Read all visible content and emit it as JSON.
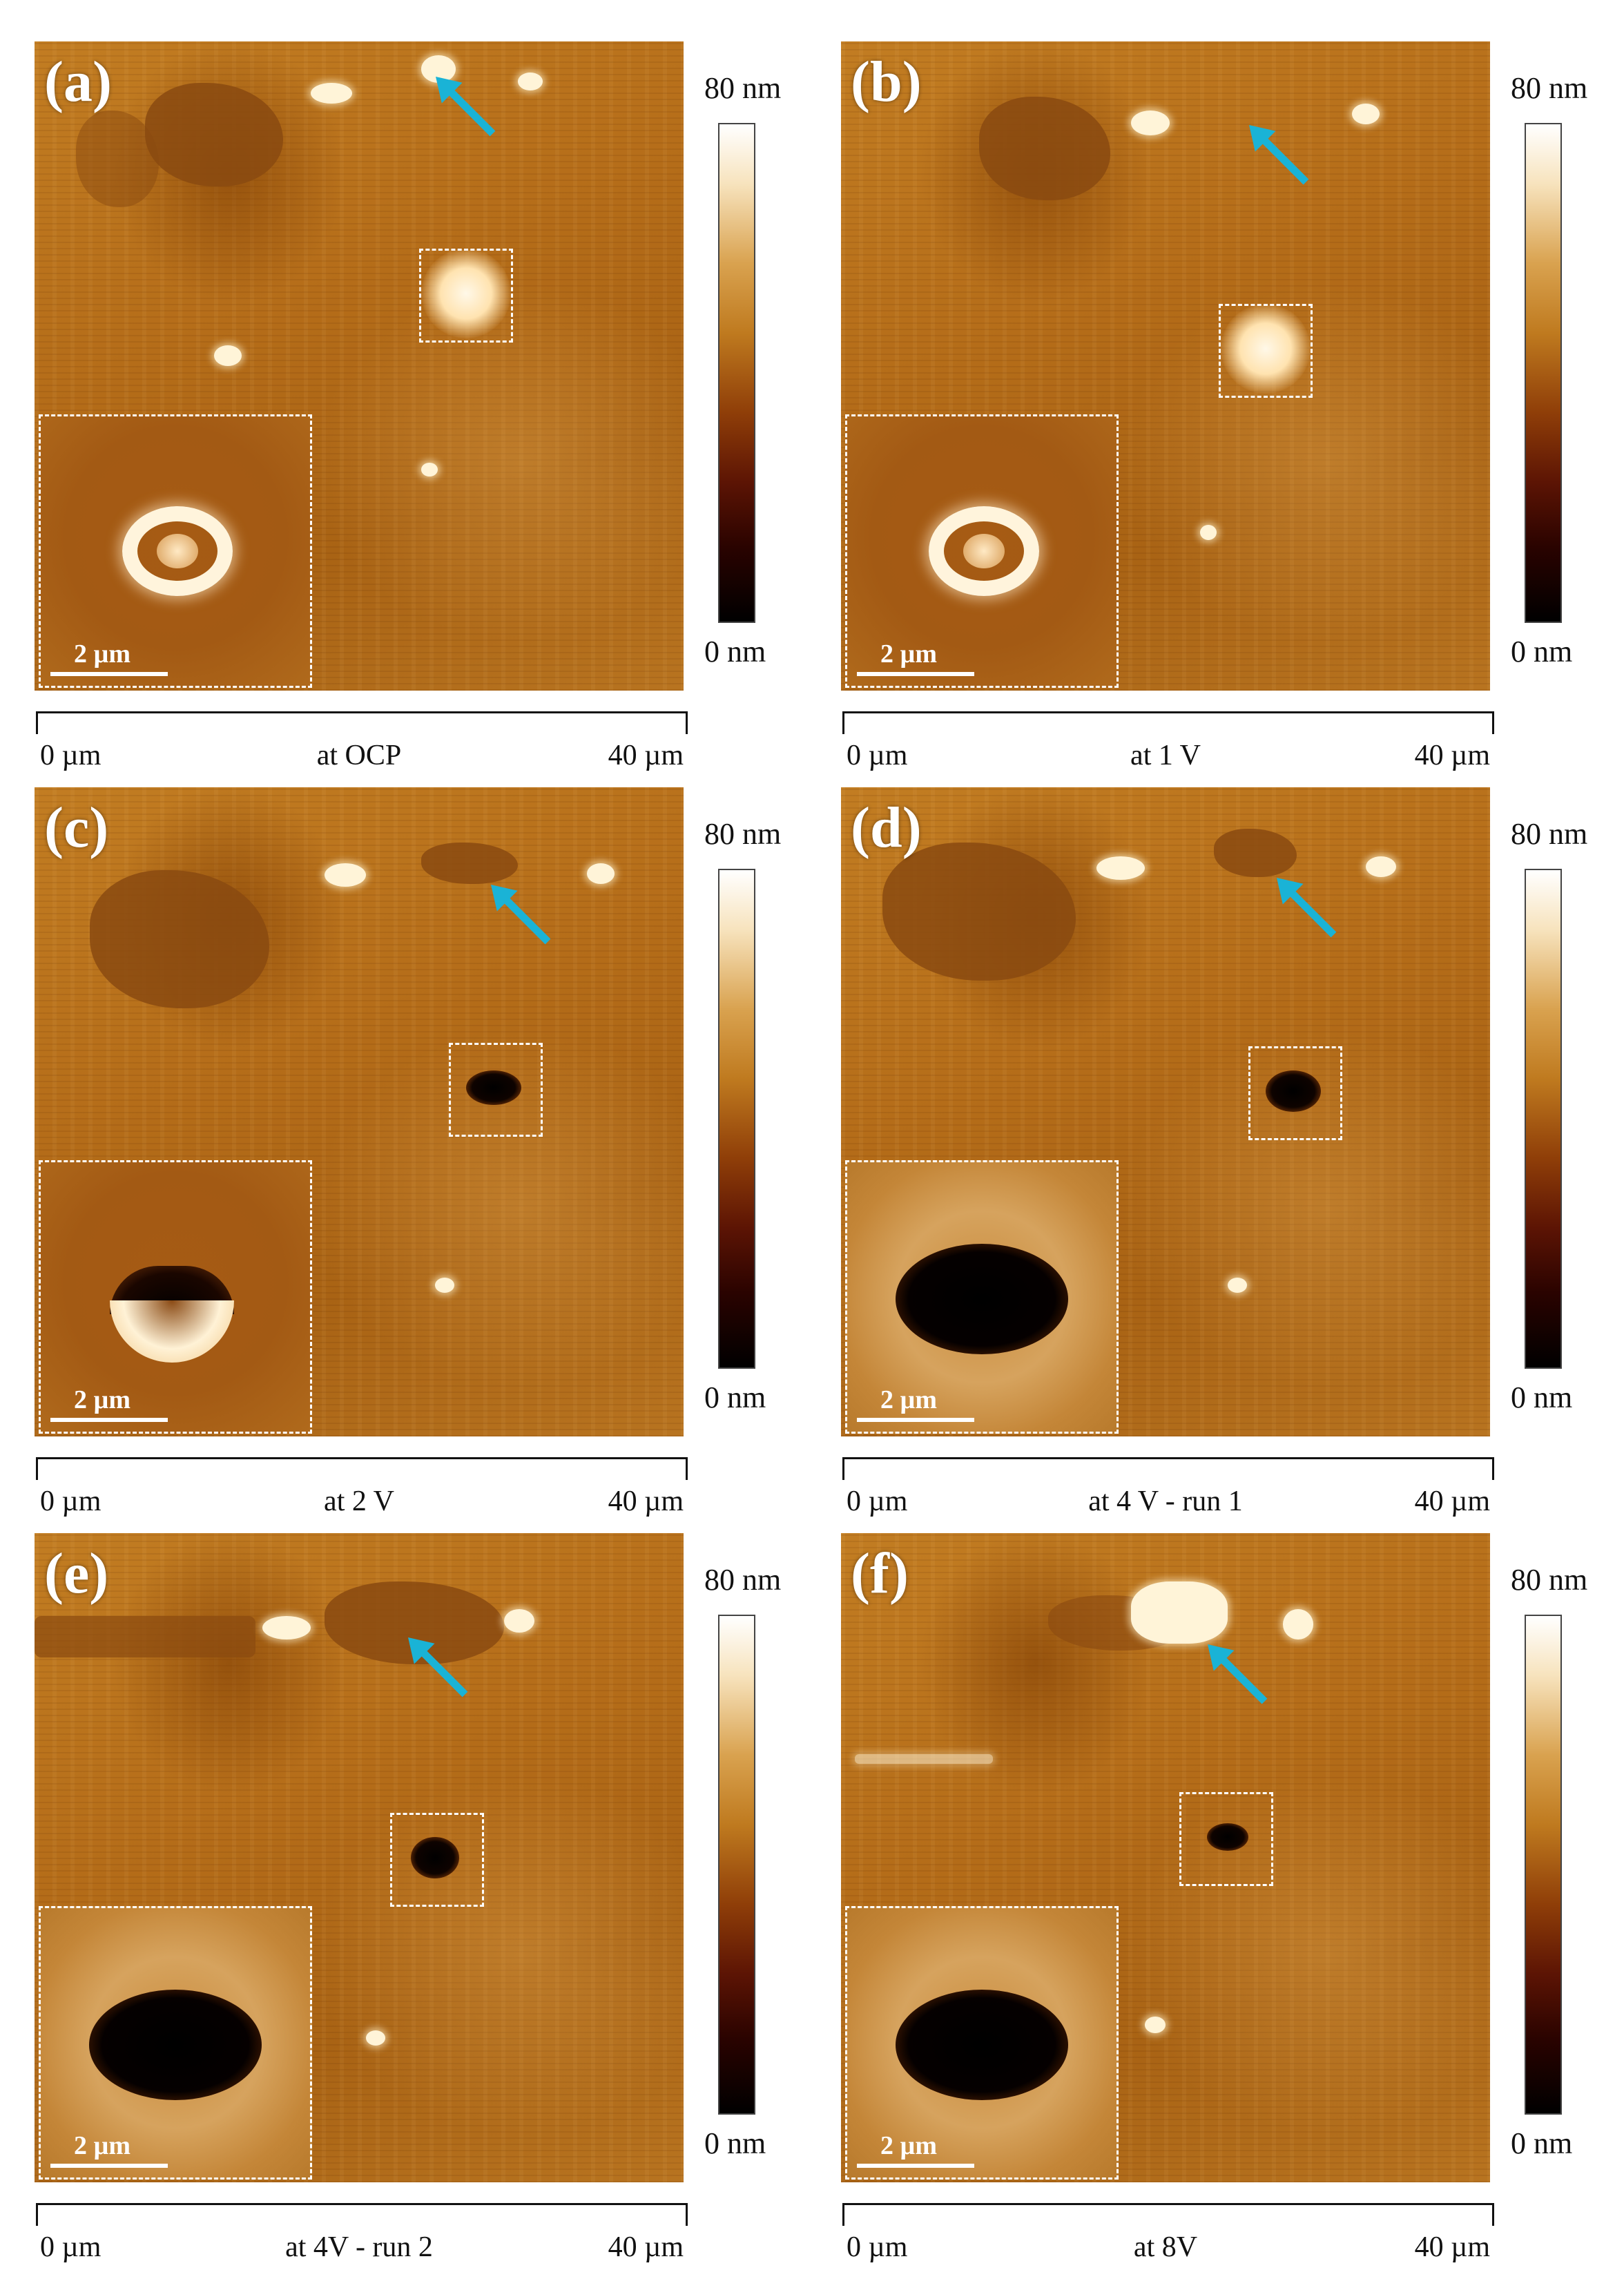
{
  "colorbar": {
    "max": "80 nm",
    "min": "0 nm"
  },
  "scale_bar": "2 µm",
  "axis": {
    "start": "0 µm",
    "end": "40 µm"
  },
  "arrow_color": "#1ab3d6",
  "panels": [
    {
      "label": "(a)",
      "condition": "at OCP",
      "feature": "ring"
    },
    {
      "label": "(b)",
      "condition": "at 1 V",
      "feature": "ring"
    },
    {
      "label": "(c)",
      "condition": "at 2 V",
      "feature": "half-pit"
    },
    {
      "label": "(d)",
      "condition": "at 4 V - run 1",
      "feature": "pit"
    },
    {
      "label": "(e)",
      "condition": "at 4V - run 2",
      "feature": "pit"
    },
    {
      "label": "(f)",
      "condition": "at 8V",
      "feature": "pit"
    }
  ]
}
